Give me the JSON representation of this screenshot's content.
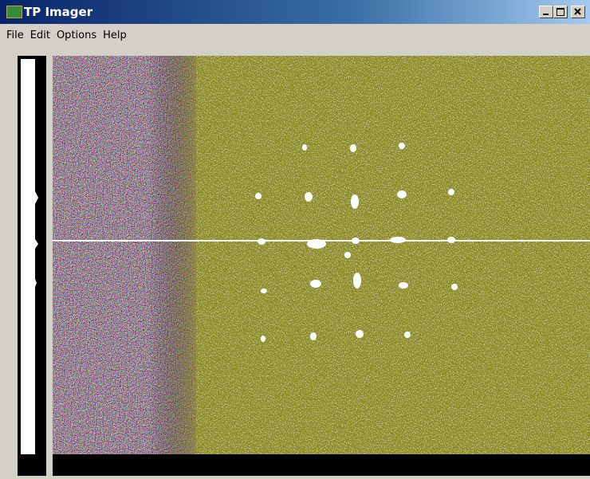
{
  "window": {
    "title": "TP Imager"
  },
  "menu": [
    "File",
    "Edit",
    "Options",
    "Help"
  ]
}
